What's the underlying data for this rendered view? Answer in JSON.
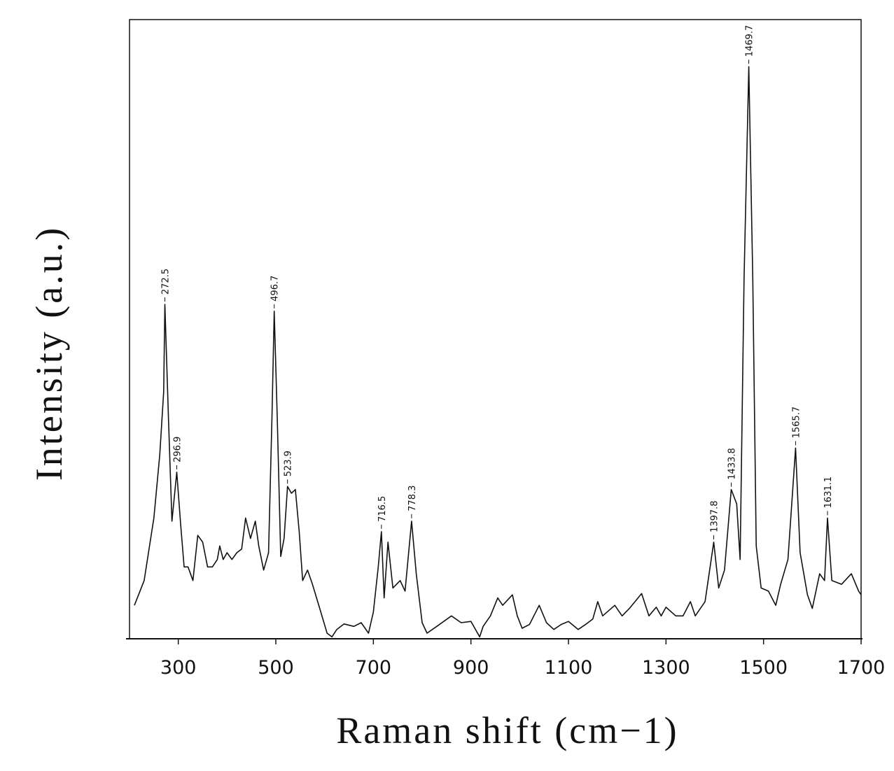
{
  "chart_data": {
    "type": "line",
    "xlabel": "Raman shift (cm−1)",
    "ylabel": "Intensity (a.u.)",
    "xlim": [
      200,
      1700
    ],
    "ylim": [
      0,
      100
    ],
    "xticks": [
      300,
      500,
      700,
      900,
      1100,
      1300,
      1500,
      1700
    ],
    "series": [
      {
        "color": "#111111",
        "x": [
          210,
          230,
          250,
          262,
          270,
          272.5,
          280,
          287,
          296.9,
          305,
          312,
          320,
          330,
          340,
          350,
          360,
          370,
          380,
          385,
          392,
          400,
          410,
          420,
          430,
          438,
          448,
          458,
          465,
          475,
          485,
          492,
          496.7,
          503,
          510,
          517,
          523.9,
          532,
          540,
          548,
          555,
          565,
          575,
          590,
          605,
          615,
          625,
          640,
          660,
          675,
          690,
          700,
          710,
          716.5,
          722,
          730,
          740,
          755,
          765,
          778.3,
          788,
          800,
          810,
          830,
          860,
          880,
          900,
          918,
          925,
          940,
          955,
          965,
          985,
          995,
          1005,
          1020,
          1040,
          1055,
          1070,
          1085,
          1100,
          1120,
          1135,
          1150,
          1160,
          1170,
          1195,
          1210,
          1225,
          1250,
          1265,
          1280,
          1290,
          1300,
          1320,
          1335,
          1350,
          1360,
          1380,
          1397.8,
          1408,
          1420,
          1433.8,
          1445,
          1452,
          1460,
          1469.7,
          1478,
          1485,
          1495,
          1510,
          1525,
          1535,
          1550,
          1565.7,
          1575,
          1590,
          1600,
          1615,
          1625,
          1631.1,
          1640,
          1660,
          1680,
          1695,
          1700
        ],
        "values": [
          5.4,
          9.4,
          19.5,
          29.7,
          39.9,
          54.0,
          35.4,
          19.0,
          26.9,
          18.4,
          11.6,
          11.6,
          9.4,
          16.7,
          15.6,
          11.6,
          11.6,
          12.8,
          15.0,
          12.8,
          13.9,
          12.8,
          13.9,
          14.5,
          19.5,
          16.2,
          19.0,
          15.0,
          11.1,
          13.9,
          35.4,
          52.9,
          35.4,
          13.3,
          16.2,
          24.6,
          23.5,
          24.1,
          17.3,
          9.4,
          11.1,
          8.8,
          4.9,
          0.9,
          0.3,
          1.5,
          2.4,
          2.0,
          2.6,
          0.9,
          4.3,
          11.6,
          17.3,
          6.6,
          15.6,
          8.2,
          9.4,
          7.7,
          19.0,
          10.5,
          2.6,
          0.9,
          2.0,
          3.7,
          2.6,
          2.8,
          0.3,
          2.0,
          3.7,
          6.6,
          5.4,
          7.1,
          3.7,
          1.7,
          2.3,
          5.4,
          2.6,
          1.5,
          2.3,
          2.8,
          1.5,
          2.3,
          3.2,
          6.0,
          3.7,
          5.4,
          3.7,
          4.9,
          7.3,
          3.7,
          5.1,
          3.7,
          5.1,
          3.7,
          3.7,
          6.0,
          3.7,
          6.0,
          15.6,
          8.2,
          11.1,
          24.1,
          21.8,
          12.8,
          58.0,
          92.4,
          58.0,
          15.0,
          8.2,
          7.7,
          5.4,
          8.8,
          12.8,
          30.8,
          13.9,
          7.1,
          4.9,
          10.5,
          9.4,
          19.5,
          9.4,
          8.8,
          10.5,
          7.7,
          7.1
        ]
      }
    ],
    "peaks": [
      {
        "x": 272.5,
        "y": 54.0
      },
      {
        "x": 296.9,
        "y": 26.9
      },
      {
        "x": 496.7,
        "y": 52.9
      },
      {
        "x": 523.9,
        "y": 24.6
      },
      {
        "x": 716.5,
        "y": 17.3
      },
      {
        "x": 778.3,
        "y": 19.0
      },
      {
        "x": 1397.8,
        "y": 15.6
      },
      {
        "x": 1433.8,
        "y": 24.1
      },
      {
        "x": 1469.7,
        "y": 92.4
      },
      {
        "x": 1565.7,
        "y": 30.8
      },
      {
        "x": 1631.1,
        "y": 19.5
      }
    ]
  }
}
